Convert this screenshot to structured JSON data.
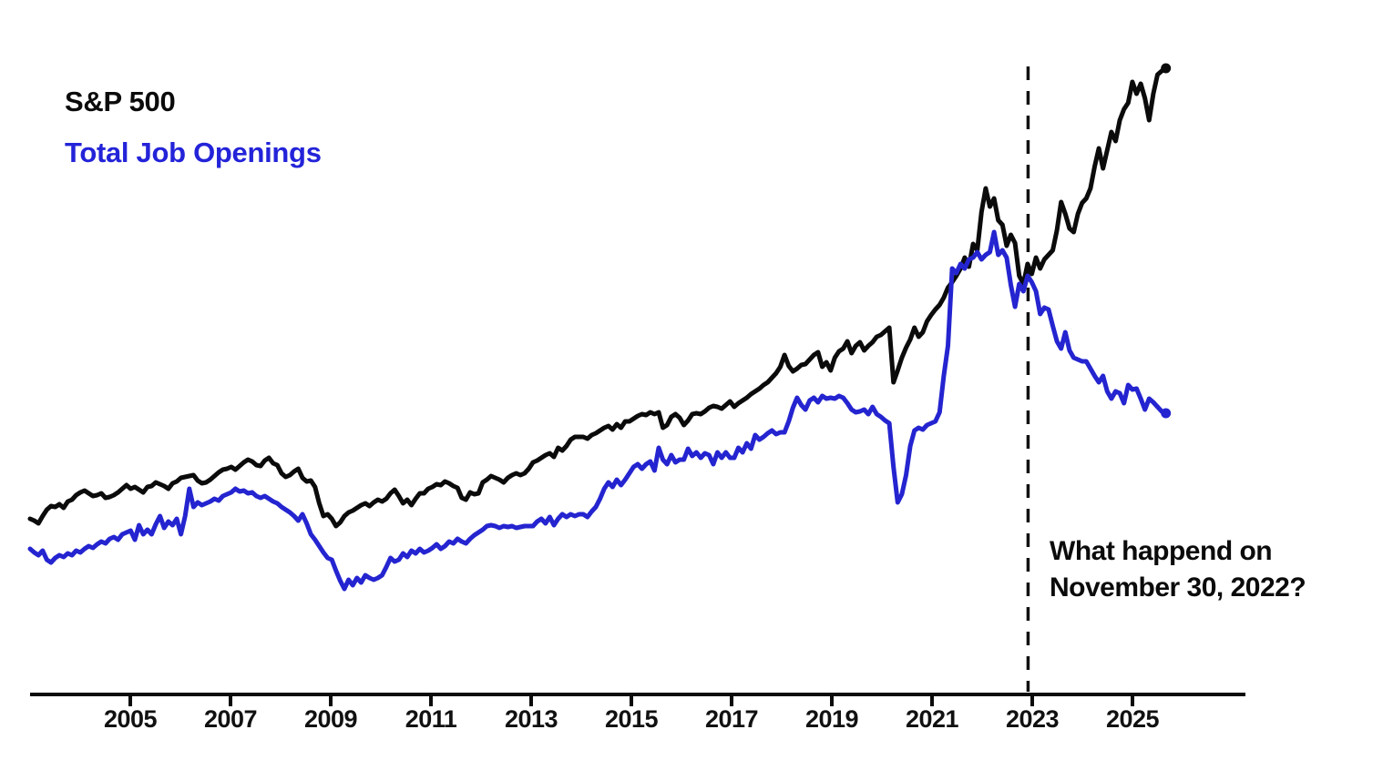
{
  "legend": {
    "series1_label": "S&P 500",
    "series2_label": "Total Job Openings"
  },
  "annotation": {
    "line1": "What happend on",
    "line2": "November 30, 2022?"
  },
  "colors": {
    "sp500": "#0b0b0b",
    "job_openings": "#2424d0",
    "job_openings_text": "#2323d9",
    "axis": "#0b0b0b",
    "event_line": "#111111",
    "background": "#ffffff"
  },
  "x_axis": {
    "ticks": [
      "2005",
      "2007",
      "2009",
      "2011",
      "2013",
      "2015",
      "2017",
      "2019",
      "2021",
      "2023",
      "2025"
    ]
  },
  "chart_data": {
    "type": "line",
    "title": "",
    "xlabel": "",
    "ylabel": "",
    "grid": false,
    "legend_position": "top-left",
    "y_axis_shown": false,
    "unit": "indexed level, arbitrary units (no y-axis drawn in figure)",
    "x_start_year": 2003.0,
    "x_step": "monthly",
    "x_end_year": 2025.667,
    "x_tick_years": [
      2005,
      2007,
      2009,
      2011,
      2013,
      2015,
      2017,
      2019,
      2021,
      2023,
      2025
    ],
    "event_line": {
      "year": 2022.917,
      "date_label": "November 30, 2022",
      "style": "dashed-vertical"
    },
    "series": [
      {
        "name": "S&P 500",
        "end_marker": "dot",
        "values": [
          193,
          191,
          188,
          196,
          203,
          207,
          206,
          209,
          205,
          212,
          214,
          219,
          222,
          224,
          221,
          218,
          219,
          221,
          216,
          217,
          219,
          222,
          226,
          230,
          226,
          228,
          225,
          222,
          228,
          229,
          233,
          231,
          229,
          226,
          232,
          234,
          238,
          239,
          240,
          241,
          235,
          232,
          233,
          236,
          240,
          244,
          247,
          248,
          250,
          247,
          251,
          255,
          258,
          256,
          252,
          251,
          257,
          260,
          254,
          252,
          243,
          239,
          241,
          245,
          248,
          238,
          234,
          235,
          228,
          210,
          196,
          198,
          193,
          185,
          189,
          196,
          200,
          202,
          205,
          208,
          210,
          207,
          211,
          214,
          212,
          215,
          221,
          225,
          218,
          210,
          214,
          208,
          215,
          221,
          221,
          226,
          228,
          231,
          230,
          234,
          232,
          229,
          227,
          216,
          214,
          222,
          220,
          221,
          233,
          236,
          240,
          238,
          236,
          233,
          238,
          241,
          243,
          241,
          243,
          248,
          255,
          257,
          260,
          263,
          265,
          261,
          271,
          268,
          273,
          280,
          283,
          283,
          283,
          281,
          285,
          287,
          290,
          293,
          295,
          291,
          297,
          293,
          300,
          300,
          303,
          306,
          308,
          307,
          310,
          308,
          310,
          293,
          296,
          305,
          308,
          304,
          296,
          301,
          308,
          309,
          308,
          311,
          315,
          317,
          316,
          314,
          318,
          322,
          316,
          320,
          323,
          326,
          330,
          333,
          336,
          340,
          343,
          348,
          353,
          360,
          373,
          361,
          355,
          358,
          362,
          363,
          368,
          373,
          376,
          360,
          365,
          356,
          370,
          377,
          380,
          388,
          375,
          383,
          387,
          378,
          383,
          387,
          393,
          395,
          399,
          403,
          343,
          356,
          370,
          381,
          390,
          403,
          393,
          398,
          410,
          417,
          423,
          428,
          436,
          447,
          453,
          460,
          468,
          480,
          470,
          495,
          488,
          530,
          556,
          536,
          545,
          521,
          516,
          493,
          505,
          496,
          460,
          451,
          473,
          462,
          480,
          468,
          478,
          483,
          488,
          510,
          541,
          528,
          512,
          508,
          528,
          540,
          545,
          556,
          580,
          600,
          578,
          598,
          618,
          608,
          631,
          643,
          650,
          673,
          660,
          671,
          655,
          631,
          660,
          681,
          685,
          688
        ]
      },
      {
        "name": "Total Job Openings",
        "end_marker": "dot",
        "values": [
          160,
          156,
          153,
          158,
          148,
          145,
          150,
          153,
          151,
          155,
          153,
          158,
          156,
          160,
          163,
          161,
          165,
          168,
          166,
          171,
          173,
          170,
          176,
          178,
          180,
          170,
          186,
          176,
          181,
          176,
          187,
          196,
          183,
          190,
          186,
          193,
          176,
          196,
          226,
          206,
          211,
          208,
          210,
          212,
          215,
          213,
          218,
          220,
          222,
          226,
          223,
          224,
          221,
          222,
          218,
          216,
          218,
          215,
          212,
          210,
          206,
          203,
          200,
          196,
          191,
          198,
          188,
          176,
          170,
          163,
          156,
          150,
          148,
          136,
          125,
          116,
          126,
          120,
          128,
          123,
          131,
          128,
          126,
          128,
          131,
          140,
          150,
          146,
          148,
          155,
          151,
          158,
          155,
          160,
          156,
          158,
          161,
          165,
          160,
          163,
          168,
          166,
          171,
          168,
          166,
          171,
          175,
          178,
          181,
          185,
          186,
          185,
          183,
          185,
          184,
          185,
          183,
          184,
          185,
          185,
          185,
          190,
          193,
          188,
          195,
          186,
          193,
          198,
          195,
          198,
          196,
          198,
          198,
          195,
          201,
          206,
          215,
          226,
          233,
          228,
          236,
          230,
          236,
          243,
          250,
          253,
          248,
          253,
          256,
          246,
          271,
          258,
          253,
          263,
          255,
          258,
          258,
          270,
          262,
          266,
          260,
          265,
          263,
          253,
          266,
          260,
          266,
          260,
          260,
          271,
          266,
          276,
          270,
          285,
          280,
          283,
          287,
          290,
          286,
          288,
          288,
          300,
          315,
          326,
          318,
          313,
          323,
          326,
          321,
          328,
          325,
          326,
          325,
          328,
          326,
          320,
          313,
          310,
          311,
          313,
          308,
          316,
          308,
          305,
          301,
          298,
          250,
          211,
          220,
          241,
          273,
          290,
          293,
          291,
          296,
          298,
          300,
          310,
          350,
          383,
          468,
          463,
          473,
          468,
          478,
          480,
          486,
          478,
          483,
          486,
          508,
          483,
          488,
          480,
          450,
          426,
          451,
          443,
          460,
          453,
          443,
          418,
          425,
          423,
          405,
          388,
          380,
          398,
          378,
          370,
          368,
          366,
          366,
          358,
          350,
          343,
          350,
          333,
          325,
          333,
          331,
          320,
          340,
          335,
          336,
          325,
          313,
          325,
          321,
          316,
          311,
          309
        ]
      }
    ]
  }
}
